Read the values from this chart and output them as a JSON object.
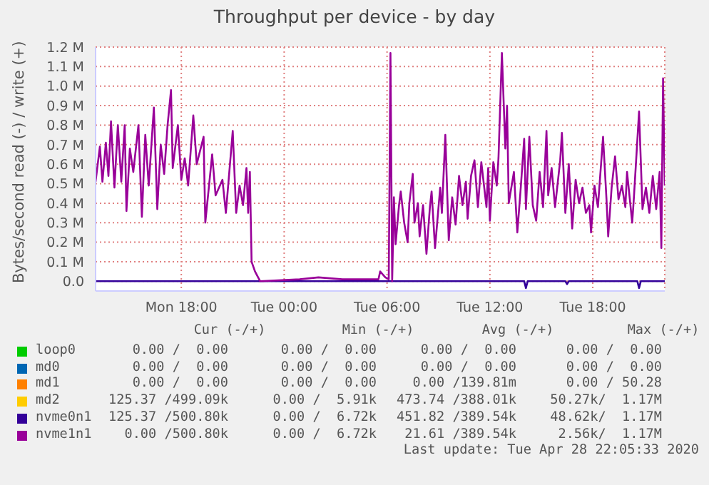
{
  "chart_data": {
    "type": "line",
    "title": "Throughput per device - by day",
    "ylabel": "Bytes/second read (-) / write (+)",
    "xlim": [
      "2020-04-27T13:00",
      "2020-04-28T22:12"
    ],
    "xticks": [
      {
        "value": "2020-04-27T18:00",
        "label": "Mon 18:00"
      },
      {
        "value": "2020-04-28T00:00",
        "label": "Tue 00:00"
      },
      {
        "value": "2020-04-28T06:00",
        "label": "Tue 06:00"
      },
      {
        "value": "2020-04-28T12:00",
        "label": "Tue 12:00"
      },
      {
        "value": "2020-04-28T18:00",
        "label": "Tue 18:00"
      }
    ],
    "ylim": [
      -50000,
      1200000
    ],
    "yticks": [
      {
        "value": 0,
        "label": "0.0"
      },
      {
        "value": 100000,
        "label": "0.1 M"
      },
      {
        "value": 200000,
        "label": "0.2 M"
      },
      {
        "value": 300000,
        "label": "0.3 M"
      },
      {
        "value": 400000,
        "label": "0.4 M"
      },
      {
        "value": 500000,
        "label": "0.5 M"
      },
      {
        "value": 600000,
        "label": "0.6 M"
      },
      {
        "value": 700000,
        "label": "0.7 M"
      },
      {
        "value": 800000,
        "label": "0.8 M"
      },
      {
        "value": 900000,
        "label": "0.9 M"
      },
      {
        "value": 1000000,
        "label": "1.0 M"
      },
      {
        "value": 1100000,
        "label": "1.1 M"
      },
      {
        "value": 1200000,
        "label": "1.2 M"
      }
    ],
    "grid": true,
    "legend": "bottom",
    "marker": "none",
    "line_style": "solid",
    "series": [
      {
        "name": "loop0",
        "color": "#00cc00"
      },
      {
        "name": "md0",
        "color": "#0066b3"
      },
      {
        "name": "md1",
        "color": "#ff8000"
      },
      {
        "name": "md2",
        "color": "#ffcc00"
      },
      {
        "name": "nvme0n1",
        "color": "#330099",
        "x": [
          "2020-04-27T13:00",
          "2020-04-28T14:00",
          "2020-04-28T14:06",
          "2020-04-28T14:12",
          "2020-04-28T16:24",
          "2020-04-28T16:30",
          "2020-04-28T16:36",
          "2020-04-28T20:36",
          "2020-04-28T20:42",
          "2020-04-28T20:48",
          "2020-04-28T22:12"
        ],
        "values": [
          0,
          0,
          -35000,
          0,
          0,
          -15000,
          0,
          0,
          -35000,
          0,
          0
        ]
      },
      {
        "name": "nvme1n1",
        "color": "#990099",
        "x": [
          "2020-04-27T13:00",
          "2020-04-27T13:15",
          "2020-04-27T13:24",
          "2020-04-27T13:36",
          "2020-04-27T13:45",
          "2020-04-27T13:54",
          "2020-04-27T14:06",
          "2020-04-27T14:18",
          "2020-04-27T14:30",
          "2020-04-27T14:42",
          "2020-04-27T14:48",
          "2020-04-27T15:00",
          "2020-04-27T15:12",
          "2020-04-27T15:30",
          "2020-04-27T15:42",
          "2020-04-27T15:54",
          "2020-04-27T16:06",
          "2020-04-27T16:24",
          "2020-04-27T16:36",
          "2020-04-27T16:48",
          "2020-04-27T17:00",
          "2020-04-27T17:12",
          "2020-04-27T17:24",
          "2020-04-27T17:30",
          "2020-04-27T17:48",
          "2020-04-27T18:00",
          "2020-04-27T18:12",
          "2020-04-27T18:24",
          "2020-04-27T18:42",
          "2020-04-27T18:54",
          "2020-04-27T19:18",
          "2020-04-27T19:24",
          "2020-04-27T19:48",
          "2020-04-27T20:00",
          "2020-04-27T20:24",
          "2020-04-27T20:36",
          "2020-04-27T21:00",
          "2020-04-27T21:12",
          "2020-04-27T21:24",
          "2020-04-27T21:36",
          "2020-04-27T21:48",
          "2020-04-27T21:54",
          "2020-04-27T22:00",
          "2020-04-27T22:06",
          "2020-04-27T22:18",
          "2020-04-27T22:36",
          "2020-04-28T00:54",
          "2020-04-28T02:00",
          "2020-04-28T03:24",
          "2020-04-28T05:30",
          "2020-04-28T05:36",
          "2020-04-28T05:54",
          "2020-04-28T06:06",
          "2020-04-28T06:12",
          "2020-04-28T06:18",
          "2020-04-28T06:24",
          "2020-04-28T06:30",
          "2020-04-28T06:42",
          "2020-04-28T06:48",
          "2020-04-28T07:00",
          "2020-04-28T07:12",
          "2020-04-28T07:18",
          "2020-04-28T07:30",
          "2020-04-28T07:36",
          "2020-04-28T07:48",
          "2020-04-28T07:54",
          "2020-04-28T08:06",
          "2020-04-28T08:18",
          "2020-04-28T08:30",
          "2020-04-28T08:36",
          "2020-04-28T08:48",
          "2020-04-28T09:06",
          "2020-04-28T09:12",
          "2020-04-28T09:24",
          "2020-04-28T09:36",
          "2020-04-28T09:48",
          "2020-04-28T10:00",
          "2020-04-28T10:12",
          "2020-04-28T10:24",
          "2020-04-28T10:36",
          "2020-04-28T10:42",
          "2020-04-28T10:54",
          "2020-04-28T11:06",
          "2020-04-28T11:18",
          "2020-04-28T11:30",
          "2020-04-28T11:48",
          "2020-04-28T11:54",
          "2020-04-28T12:00",
          "2020-04-28T12:12",
          "2020-04-28T12:24",
          "2020-04-28T12:30",
          "2020-04-28T12:42",
          "2020-04-28T12:54",
          "2020-04-28T13:00",
          "2020-04-28T13:06",
          "2020-04-28T13:24",
          "2020-04-28T13:36",
          "2020-04-28T13:48",
          "2020-04-28T14:00",
          "2020-04-28T14:06",
          "2020-04-28T14:18",
          "2020-04-28T14:30",
          "2020-04-28T14:42",
          "2020-04-28T14:54",
          "2020-04-28T15:06",
          "2020-04-28T15:18",
          "2020-04-28T15:24",
          "2020-04-28T15:36",
          "2020-04-28T15:48",
          "2020-04-28T16:06",
          "2020-04-28T16:12",
          "2020-04-28T16:24",
          "2020-04-28T16:36",
          "2020-04-28T16:48",
          "2020-04-28T17:00",
          "2020-04-28T17:12",
          "2020-04-28T17:24",
          "2020-04-28T17:36",
          "2020-04-28T17:48",
          "2020-04-28T17:54",
          "2020-04-28T18:06",
          "2020-04-28T18:18",
          "2020-04-28T18:36",
          "2020-04-28T18:48",
          "2020-04-28T18:54",
          "2020-04-28T19:06",
          "2020-04-28T19:18",
          "2020-04-28T19:30",
          "2020-04-28T19:42",
          "2020-04-28T19:54",
          "2020-04-28T20:00",
          "2020-04-28T20:18",
          "2020-04-28T20:24",
          "2020-04-28T20:42",
          "2020-04-28T20:54",
          "2020-04-28T21:06",
          "2020-04-28T21:18",
          "2020-04-28T21:30",
          "2020-04-28T21:42",
          "2020-04-28T21:54",
          "2020-04-28T22:00",
          "2020-04-28T22:06",
          "2020-04-28T22:12"
        ],
        "values": [
          510000,
          690000,
          510000,
          710000,
          540000,
          820000,
          480000,
          800000,
          510000,
          800000,
          360000,
          680000,
          560000,
          800000,
          330000,
          750000,
          490000,
          890000,
          370000,
          700000,
          550000,
          800000,
          980000,
          580000,
          800000,
          520000,
          630000,
          490000,
          850000,
          600000,
          740000,
          300000,
          650000,
          440000,
          520000,
          350000,
          770000,
          350000,
          490000,
          390000,
          580000,
          350000,
          560000,
          100000,
          50000,
          0,
          10000,
          20000,
          10000,
          10000,
          50000,
          20000,
          10000,
          1170000,
          0,
          430000,
          190000,
          390000,
          460000,
          300000,
          200000,
          400000,
          550000,
          300000,
          400000,
          230000,
          390000,
          140000,
          380000,
          460000,
          170000,
          480000,
          350000,
          750000,
          210000,
          430000,
          290000,
          540000,
          390000,
          510000,
          320000,
          540000,
          620000,
          380000,
          610000,
          380000,
          580000,
          310000,
          610000,
          490000,
          630000,
          1170000,
          680000,
          900000,
          400000,
          560000,
          250000,
          480000,
          730000,
          370000,
          740000,
          390000,
          310000,
          560000,
          380000,
          770000,
          440000,
          580000,
          380000,
          620000,
          760000,
          350000,
          600000,
          270000,
          520000,
          400000,
          480000,
          350000,
          390000,
          250000,
          490000,
          380000,
          740000,
          420000,
          230000,
          480000,
          640000,
          420000,
          490000,
          380000,
          560000,
          300000,
          430000,
          870000,
          370000,
          480000,
          350000,
          540000,
          370000,
          560000,
          170000,
          1040000,
          490000
        ]
      }
    ],
    "annotations": [
      "Cur (-/+)",
      "Min (-/+)",
      "Avg (-/+)",
      "Max (-/+)",
      "0.00 /  0.00",
      "0.00 /  0.00",
      "0.00 /  0.00",
      "0.00 /  0.00",
      "0.00 /  0.00",
      "0.00 /  0.00",
      "0.00 /  0.00",
      "0.00 /  0.00",
      "0.00 /  0.00",
      "0.00 /  0.00",
      "0.00 /139.81m",
      "0.00 / 50.28",
      "125.37 /499.09k",
      "0.00 /  5.91k",
      "473.74 /388.01k",
      "50.27k/  1.17M",
      "125.37 /500.80k",
      "0.00 /  6.72k",
      "451.82 /389.54k",
      "48.62k/  1.17M",
      "0.00 /500.80k",
      "0.00 /  6.72k",
      "21.61 /389.54k",
      "2.56k/  1.17M",
      "Last update: Tue Apr 28 22:05:33 2020"
    ]
  }
}
